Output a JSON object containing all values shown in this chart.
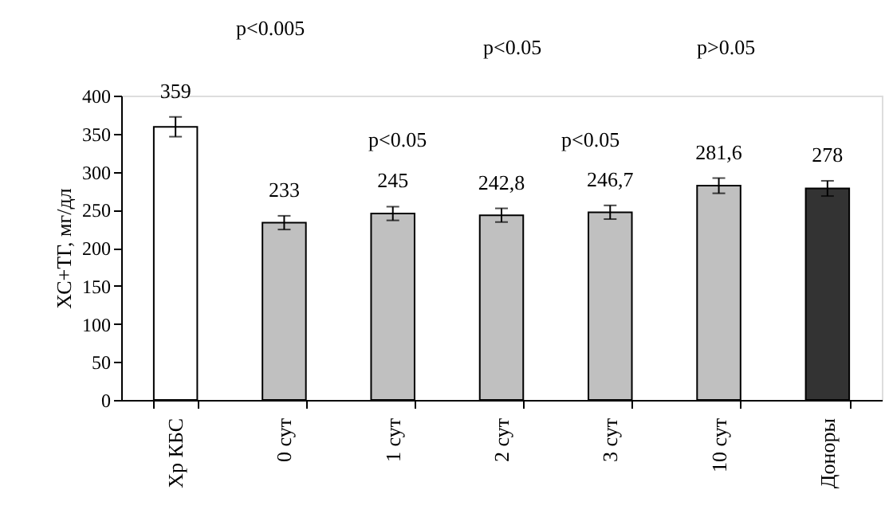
{
  "chart_data": {
    "type": "bar",
    "ylabel": "ХС+ТГ, мг/дл",
    "categories": [
      "Хр КБС",
      "0 сут",
      "1 сут",
      "2 сут",
      "3 сут",
      "10 сут",
      "Доноры"
    ],
    "values": [
      359,
      233,
      245,
      242.8,
      246.7,
      281.6,
      278
    ],
    "colors": [
      "#ffffff",
      "#c0c0c0",
      "#c0c0c0",
      "#c0c0c0",
      "#c0c0c0",
      "#c0c0c0",
      "#333333"
    ],
    "errors": [
      13,
      9,
      9,
      9,
      9,
      10,
      10
    ],
    "value_labels": [
      "359",
      "233",
      "245",
      "242,8",
      "246,7",
      "281,6",
      "278"
    ],
    "ylim": [
      0,
      400
    ],
    "yticks": [
      0,
      50,
      100,
      150,
      200,
      250,
      300,
      350,
      400
    ],
    "annotations": [
      "p<0.005",
      "p<0.05",
      "p>0.05",
      "p<0.05",
      "p<0.05"
    ],
    "grid": false
  }
}
